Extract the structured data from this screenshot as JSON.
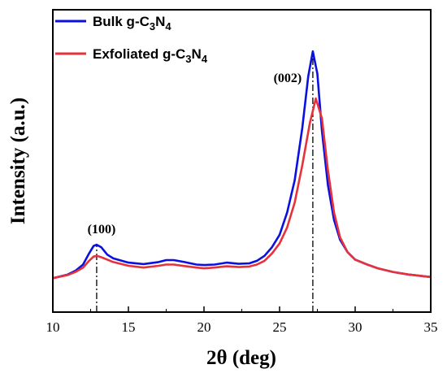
{
  "chart_data": {
    "type": "line",
    "xlabel": "2θ (deg)",
    "ylabel": "Intensity (a.u.)",
    "xlim": [
      10,
      35
    ],
    "ylim": [
      0,
      100
    ],
    "xticks": [
      10,
      15,
      20,
      25,
      30,
      35
    ],
    "y_tick_labels": false,
    "grid": false,
    "legend_position": "top-left",
    "series": [
      {
        "name": "Bulk g-C3N4",
        "name_parts": {
          "base": "Bulk g-C",
          "s1": "3",
          "mid": "N",
          "s2": "4"
        },
        "color": "#0a10e0",
        "points": [
          [
            10,
            4.5
          ],
          [
            11,
            6
          ],
          [
            11.5,
            7.5
          ],
          [
            12,
            10
          ],
          [
            12.4,
            14.5
          ],
          [
            12.7,
            17.5
          ],
          [
            12.9,
            18
          ],
          [
            13.2,
            17
          ],
          [
            13.6,
            14
          ],
          [
            14,
            12.5
          ],
          [
            15,
            10.8
          ],
          [
            16,
            10.2
          ],
          [
            17,
            11
          ],
          [
            17.5,
            11.8
          ],
          [
            18,
            11.8
          ],
          [
            18.7,
            11
          ],
          [
            19.5,
            10
          ],
          [
            20,
            9.8
          ],
          [
            20.7,
            10
          ],
          [
            21.5,
            10.8
          ],
          [
            22.3,
            10.3
          ],
          [
            23,
            10.5
          ],
          [
            23.5,
            11.5
          ],
          [
            24,
            13.5
          ],
          [
            24.5,
            17
          ],
          [
            25,
            22
          ],
          [
            25.5,
            31
          ],
          [
            26,
            44
          ],
          [
            26.5,
            65
          ],
          [
            26.9,
            86
          ],
          [
            27.2,
            96
          ],
          [
            27.5,
            87
          ],
          [
            27.8,
            64
          ],
          [
            28.2,
            42
          ],
          [
            28.6,
            28
          ],
          [
            29,
            20
          ],
          [
            29.5,
            15
          ],
          [
            30,
            12
          ],
          [
            30.8,
            10
          ],
          [
            31.5,
            8.5
          ],
          [
            32.5,
            7
          ],
          [
            33.5,
            6
          ],
          [
            34.5,
            5.3
          ],
          [
            35,
            5
          ]
        ]
      },
      {
        "name": "Exfoliated g-C3N4",
        "name_parts": {
          "base": "Exfoliated g-C",
          "s1": "3",
          "mid": "N",
          "s2": "4"
        },
        "color": "#e8323a",
        "points": [
          [
            10,
            4.5
          ],
          [
            11,
            5.8
          ],
          [
            11.5,
            7
          ],
          [
            12,
            8.8
          ],
          [
            12.4,
            11.5
          ],
          [
            12.7,
            13.2
          ],
          [
            12.9,
            13.5
          ],
          [
            13.2,
            13
          ],
          [
            13.6,
            12
          ],
          [
            14,
            11
          ],
          [
            15,
            9.5
          ],
          [
            16,
            8.8
          ],
          [
            17,
            9.5
          ],
          [
            17.5,
            10
          ],
          [
            18,
            10
          ],
          [
            18.7,
            9.4
          ],
          [
            19.5,
            8.8
          ],
          [
            20,
            8.5
          ],
          [
            20.7,
            8.8
          ],
          [
            21.5,
            9.3
          ],
          [
            22.3,
            9
          ],
          [
            23,
            9.2
          ],
          [
            23.5,
            10
          ],
          [
            24,
            11.5
          ],
          [
            24.5,
            14.5
          ],
          [
            25,
            18.5
          ],
          [
            25.5,
            25
          ],
          [
            26,
            35
          ],
          [
            26.5,
            50
          ],
          [
            27,
            67
          ],
          [
            27.4,
            77
          ],
          [
            27.8,
            69
          ],
          [
            28.2,
            48
          ],
          [
            28.6,
            31
          ],
          [
            29,
            21
          ],
          [
            29.5,
            15
          ],
          [
            30,
            12
          ],
          [
            30.8,
            10
          ],
          [
            31.5,
            8.5
          ],
          [
            32.5,
            7
          ],
          [
            33.5,
            6
          ],
          [
            34.5,
            5.3
          ],
          [
            35,
            5
          ]
        ]
      }
    ],
    "annotations": [
      {
        "text": "(100)",
        "x": 12.9
      },
      {
        "text": "(002)",
        "x": 27.2
      }
    ],
    "reference_lines": [
      12.9,
      27.2
    ]
  }
}
